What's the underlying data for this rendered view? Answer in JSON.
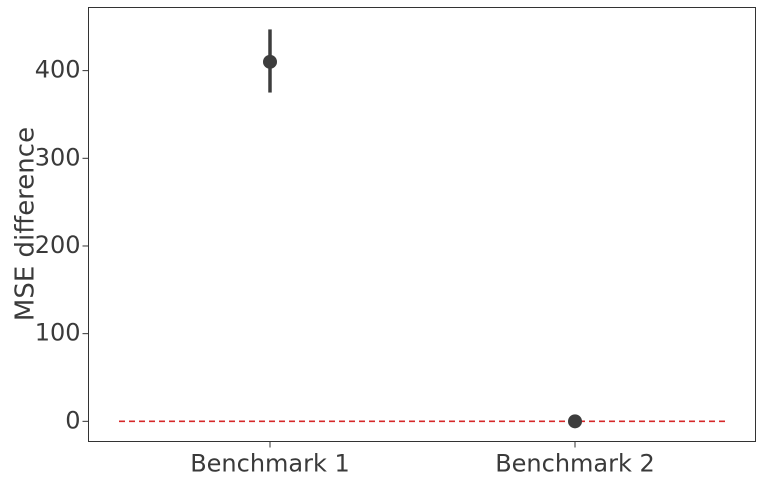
{
  "chart_data": {
    "type": "point-errorbar",
    "categories": [
      "Benchmark 1",
      "Benchmark 2"
    ],
    "series": [
      {
        "values": [
          410,
          0
        ],
        "error_low": [
          375,
          -1
        ],
        "error_high": [
          447,
          1
        ]
      }
    ],
    "xlabel": "",
    "ylabel": "MSE difference",
    "ylim": [
      -23,
      472
    ],
    "yticks": [
      0,
      100,
      200,
      300,
      400
    ],
    "reference_line": {
      "y": 0,
      "style": "dashed",
      "color": "#d62728"
    },
    "grid": false,
    "legend": "none",
    "colors": {
      "marker": "#3d3d3d",
      "axis": "#3a3a3a"
    }
  }
}
